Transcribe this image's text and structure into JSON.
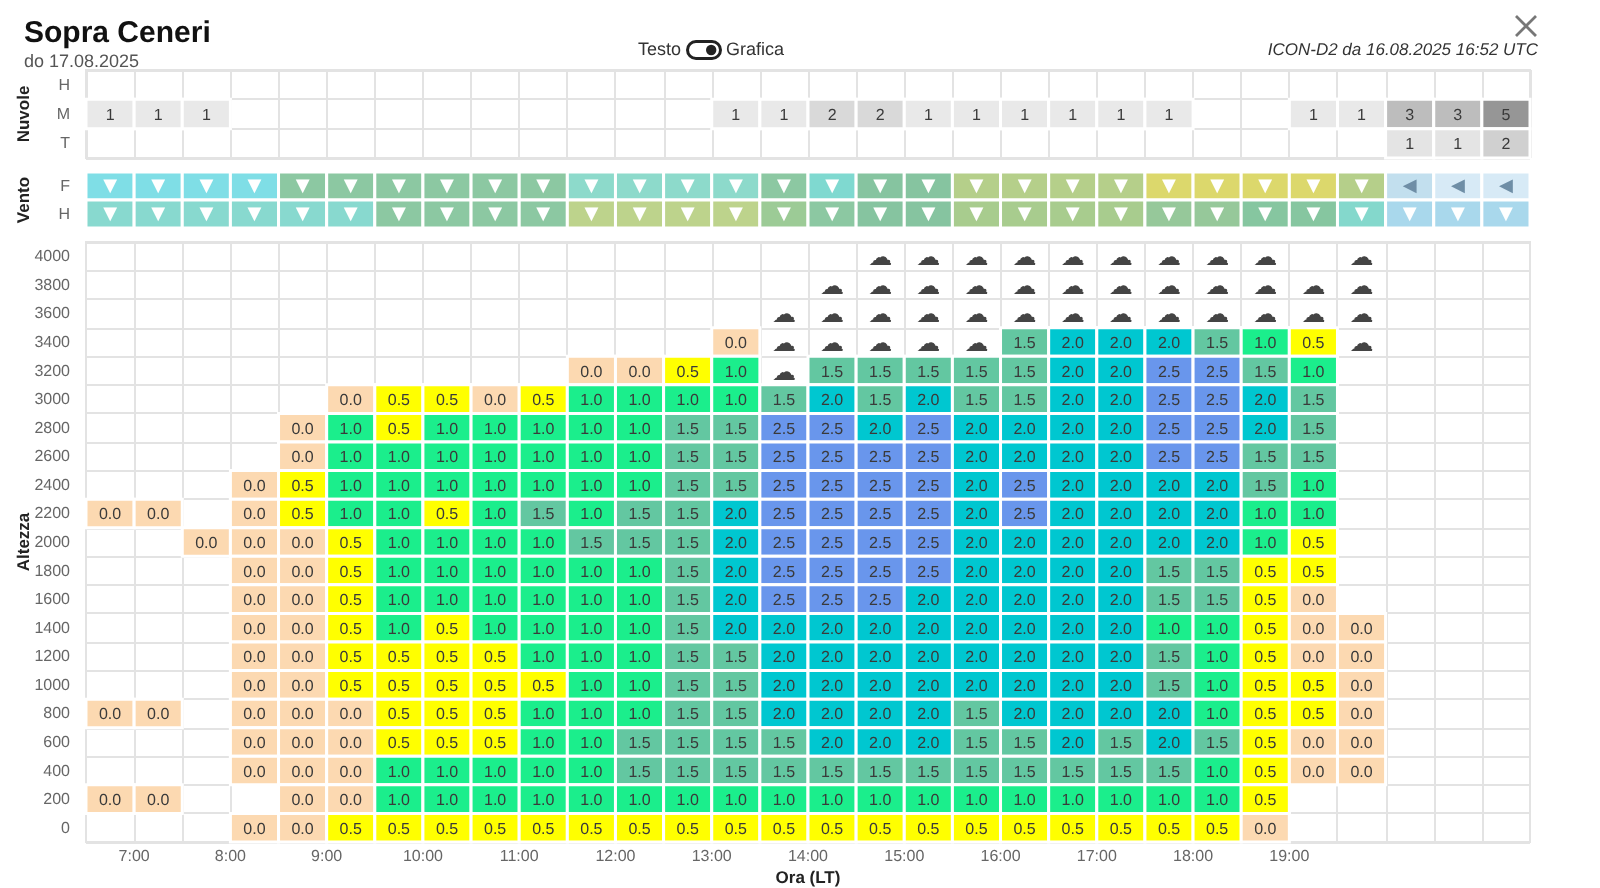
{
  "chart_data": [
    {
      "type": "heatmap",
      "title": "Sopra Ceneri",
      "subtitle": "do 17.08.2025",
      "annotations": [
        "Testo",
        "Grafica",
        "ICON-D2 da 16.08.2025 16:52 UTC"
      ],
      "ylabel": "Nuvole",
      "tick_labels": "y",
      "grid": true,
      "data_labels": true,
      "categories": [
        null,
        null,
        null,
        null,
        null,
        null,
        null,
        null,
        null,
        null,
        null,
        null,
        null,
        null,
        null,
        null,
        null,
        null,
        null,
        null,
        null,
        null,
        null,
        null,
        null,
        null,
        null,
        null,
        null,
        null
      ],
      "y_categories": [
        "H",
        "M",
        "T"
      ],
      "cells": [
        [
          null,
          null,
          null,
          null,
          null,
          null,
          null,
          null,
          null,
          null,
          null,
          null,
          null,
          null,
          null,
          null,
          null,
          null,
          null,
          null,
          null,
          null,
          null,
          null,
          null,
          null,
          null,
          null,
          null,
          null
        ],
        [
          1,
          1,
          1,
          null,
          null,
          null,
          null,
          null,
          null,
          null,
          null,
          null,
          null,
          1,
          1,
          2,
          2,
          1,
          1,
          1,
          1,
          1,
          1,
          null,
          null,
          1,
          1,
          3,
          3,
          5
        ],
        [
          null,
          null,
          null,
          null,
          null,
          null,
          null,
          null,
          null,
          null,
          null,
          null,
          null,
          null,
          null,
          null,
          null,
          null,
          null,
          null,
          null,
          null,
          null,
          null,
          null,
          null,
          null,
          1,
          1,
          2
        ]
      ],
      "colors": [
        [
          null,
          null,
          null,
          null,
          null,
          null,
          null,
          null,
          null,
          null,
          null,
          null,
          null,
          null,
          null,
          null,
          null,
          null,
          null,
          null,
          null,
          null,
          null,
          null,
          null,
          null,
          null,
          null,
          null,
          null
        ],
        [
          "#e9e9e9",
          "#e9e9e9",
          "#e9e9e9",
          null,
          null,
          null,
          null,
          null,
          null,
          null,
          null,
          null,
          null,
          "#e9e9e9",
          "#e9e9e9",
          "#d9d9d9",
          "#d9d9d9",
          "#e9e9e9",
          "#e9e9e9",
          "#e9e9e9",
          "#e9e9e9",
          "#e9e9e9",
          "#e9e9e9",
          null,
          null,
          "#e9e9e9",
          "#e9e9e9",
          "#bdbdbd",
          "#bdbdbd",
          "#969696"
        ],
        [
          null,
          null,
          null,
          null,
          null,
          null,
          null,
          null,
          null,
          null,
          null,
          null,
          null,
          null,
          null,
          null,
          null,
          null,
          null,
          null,
          null,
          null,
          null,
          null,
          null,
          null,
          null,
          "#e4e4e4",
          "#e4e4e4",
          "#d0d0d0"
        ]
      ]
    },
    {
      "type": "other",
      "ylabel": "Vento",
      "categories": [
        null,
        null,
        null,
        null,
        null,
        null,
        null,
        null,
        null,
        null,
        null,
        null,
        null,
        null,
        null,
        null,
        null,
        null,
        null,
        null,
        null,
        null,
        null,
        null,
        null,
        null,
        null,
        null,
        null,
        null
      ],
      "y_categories": [
        "F",
        "H"
      ],
      "cell_labels": [
        [
          "▼",
          "▼",
          "▼",
          "▼",
          "▼",
          "▼",
          "▼",
          "▼",
          "▼",
          "▼",
          "▼",
          "▼",
          "▼",
          "▼",
          "▼",
          "▼",
          "▼",
          "▼",
          "▼",
          "▼",
          "▼",
          "▼",
          "▼",
          "▼",
          "▼",
          "▼",
          "▼",
          "◀",
          "◀",
          "◀"
        ],
        [
          "▼",
          "▼",
          "▼",
          "▼",
          "▼",
          "▼",
          "▼",
          "▼",
          "▼",
          "▼",
          "▼",
          "▼",
          "▼",
          "▼",
          "▼",
          "▼",
          "▼",
          "▼",
          "▼",
          "▼",
          "▼",
          "▼",
          "▼",
          "▼",
          "▼",
          "▼",
          "▼",
          "▼",
          "▼",
          "▼"
        ]
      ],
      "colors": [
        [
          "#7fdee6",
          "#7fdee6",
          "#7fdee6",
          "#7fdee6",
          "#8cc8a2",
          "#8cc8a2",
          "#8cc8a2",
          "#8cc8a2",
          "#8cc8a2",
          "#8cc8a2",
          "#8ddacb",
          "#8ddacb",
          "#8ddacb",
          "#8ddacb",
          "#8cc8a2",
          "#7fd9d0",
          "#86c4a0",
          "#86c4a0",
          "#b5cf8a",
          "#b5cf8a",
          "#b5cf8a",
          "#b5cf8a",
          "#dcd86c",
          "#dcd86c",
          "#dcd86c",
          "#dcd86c",
          "#b5cf8a",
          "#c2dfee",
          "#d7eaf6",
          "#d7eaf6"
        ],
        [
          "#88d9cf",
          "#88d9cf",
          "#88d9cf",
          "#88d9cf",
          "#88d9cf",
          "#88d9cf",
          "#8cc8a2",
          "#8cc8a2",
          "#8cc8a2",
          "#8cc8a2",
          "#bdd38c",
          "#bdd38c",
          "#bdd38c",
          "#bdd38c",
          "#9ccb96",
          "#8cc8a2",
          "#86c4a0",
          "#86c4a0",
          "#a8cc8e",
          "#a8cc8e",
          "#a8cc8e",
          "#a8cc8e",
          "#96c89a",
          "#96c89a",
          "#86c6a0",
          "#86c6a0",
          "#84d8cc",
          "#a9d8ec",
          "#a9d8ec",
          "#a9d8ec"
        ]
      ]
    },
    {
      "type": "heatmap",
      "xlabel": "Ora (LT)",
      "ylabel": "Altezza",
      "grid": true,
      "x": [
        6.75,
        7.25,
        7.75,
        8.25,
        8.75,
        9.25,
        9.75,
        10.25,
        10.75,
        11.25,
        11.75,
        12.25,
        12.75,
        13.25,
        13.75,
        14.25,
        14.75,
        15.25,
        15.75,
        16.25,
        16.75,
        17.25,
        17.75,
        18.25,
        18.75,
        19.25,
        19.75
      ],
      "xlim": [
        6.5,
        21.5
      ],
      "xticks": [
        {
          "value": 7,
          "label": "7:00"
        },
        {
          "value": 7.5,
          "label": null
        },
        {
          "value": 8,
          "label": "8:00"
        },
        {
          "value": 8.5,
          "label": null
        },
        {
          "value": 9,
          "label": "9:00"
        },
        {
          "value": 9.5,
          "label": null
        },
        {
          "value": 10,
          "label": "10:00"
        },
        {
          "value": 10.5,
          "label": null
        },
        {
          "value": 11,
          "label": "11:00"
        },
        {
          "value": 11.5,
          "label": null
        },
        {
          "value": 12,
          "label": "12:00"
        },
        {
          "value": 12.5,
          "label": null
        },
        {
          "value": 13,
          "label": "13:00"
        },
        {
          "value": 13.5,
          "label": null
        },
        {
          "value": 14,
          "label": "14:00"
        },
        {
          "value": 14.5,
          "label": null
        },
        {
          "value": 15,
          "label": "15:00"
        },
        {
          "value": 15.5,
          "label": null
        },
        {
          "value": 16,
          "label": "16:00"
        },
        {
          "value": 16.5,
          "label": null
        },
        {
          "value": 17,
          "label": "17:00"
        },
        {
          "value": 17.5,
          "label": null
        },
        {
          "value": 18,
          "label": "18:00"
        },
        {
          "value": 18.5,
          "label": null
        },
        {
          "value": 19,
          "label": "19:00"
        },
        {
          "value": 19.5,
          "label": null
        },
        {
          "value": 20,
          "label": null
        },
        {
          "value": 20.5,
          "label": null
        },
        {
          "value": 21,
          "label": null
        }
      ],
      "y_categories": [
        "4000",
        "3800",
        "3600",
        "3400",
        "3200",
        "3000",
        "2800",
        "2600",
        "2400",
        "2200",
        "2000",
        "1800",
        "1600",
        "1400",
        "1200",
        "1000",
        "800",
        "600",
        "400",
        "200",
        "0"
      ],
      "cells": [
        [
          null,
          null,
          null,
          null,
          null,
          null,
          null,
          null,
          null,
          null,
          null,
          null,
          null,
          null,
          null,
          null,
          null,
          null,
          null,
          null,
          null,
          null,
          null,
          null,
          null,
          null,
          null
        ],
        [
          null,
          null,
          null,
          null,
          null,
          null,
          null,
          null,
          null,
          null,
          null,
          null,
          null,
          null,
          null,
          null,
          null,
          null,
          null,
          null,
          null,
          null,
          null,
          null,
          null,
          null,
          null
        ],
        [
          null,
          null,
          null,
          null,
          null,
          null,
          null,
          null,
          null,
          null,
          null,
          null,
          null,
          null,
          null,
          null,
          null,
          null,
          null,
          null,
          null,
          null,
          null,
          null,
          null,
          null,
          null
        ],
        [
          null,
          null,
          null,
          null,
          null,
          null,
          null,
          null,
          null,
          null,
          null,
          null,
          null,
          0,
          null,
          null,
          null,
          null,
          null,
          1.5,
          2,
          2,
          2,
          1.5,
          1,
          0.5,
          null
        ],
        [
          null,
          null,
          null,
          null,
          null,
          null,
          null,
          null,
          null,
          null,
          0,
          0,
          0.5,
          1,
          null,
          1.5,
          1.5,
          1.5,
          1.5,
          1.5,
          2,
          2,
          2.5,
          2.5,
          1.5,
          1,
          null
        ],
        [
          null,
          null,
          null,
          null,
          null,
          0,
          0.5,
          0.5,
          0,
          0.5,
          1,
          1,
          1,
          1,
          1.5,
          2,
          1.5,
          2,
          1.5,
          1.5,
          2,
          2,
          2.5,
          2.5,
          2,
          1.5,
          null
        ],
        [
          null,
          null,
          null,
          null,
          0,
          1,
          0.5,
          1,
          1,
          1,
          1,
          1,
          1.5,
          1.5,
          2.5,
          2.5,
          2,
          2.5,
          2,
          2,
          2,
          2,
          2.5,
          2.5,
          2,
          1.5,
          null
        ],
        [
          null,
          null,
          null,
          null,
          0,
          1,
          1,
          1,
          1,
          1,
          1,
          1,
          1.5,
          1.5,
          2.5,
          2.5,
          2.5,
          2.5,
          2,
          2,
          2,
          2,
          2.5,
          2.5,
          1.5,
          1.5,
          null
        ],
        [
          null,
          null,
          null,
          0,
          0.5,
          1,
          1,
          1,
          1,
          1,
          1,
          1,
          1.5,
          1.5,
          2.5,
          2.5,
          2.5,
          2.5,
          2,
          2.5,
          2,
          2,
          2,
          2,
          1.5,
          1,
          null
        ],
        [
          0,
          0,
          null,
          0,
          0.5,
          1,
          1,
          0.5,
          1,
          1.5,
          1,
          1.5,
          1.5,
          2,
          2.5,
          2.5,
          2.5,
          2.5,
          2,
          2.5,
          2,
          2,
          2,
          2,
          1,
          1,
          null
        ],
        [
          null,
          null,
          0,
          0,
          0,
          0.5,
          1,
          1,
          1,
          1,
          1.5,
          1.5,
          1.5,
          2,
          2.5,
          2.5,
          2.5,
          2.5,
          2,
          2,
          2,
          2,
          2,
          2,
          1,
          0.5,
          null
        ],
        [
          null,
          null,
          null,
          0,
          0,
          0.5,
          1,
          1,
          1,
          1,
          1,
          1,
          1.5,
          2,
          2.5,
          2.5,
          2.5,
          2.5,
          2,
          2,
          2,
          2,
          1.5,
          1.5,
          0.5,
          0.5,
          null
        ],
        [
          null,
          null,
          null,
          0,
          0,
          0.5,
          1,
          1,
          1,
          1,
          1,
          1,
          1.5,
          2,
          2.5,
          2.5,
          2.5,
          2,
          2,
          2,
          2,
          2,
          1.5,
          1.5,
          0.5,
          0,
          null
        ],
        [
          null,
          null,
          null,
          0,
          0,
          0.5,
          1,
          0.5,
          1,
          1,
          1,
          1,
          1.5,
          2,
          2,
          2,
          2,
          2,
          2,
          2,
          2,
          2,
          1,
          1,
          0.5,
          0,
          0
        ],
        [
          null,
          null,
          null,
          0,
          0,
          0.5,
          0.5,
          0.5,
          0.5,
          1,
          1,
          1,
          1.5,
          1.5,
          2,
          2,
          2,
          2,
          2,
          2,
          2,
          2,
          1.5,
          1,
          0.5,
          0,
          0
        ],
        [
          null,
          null,
          null,
          0,
          0,
          0.5,
          0.5,
          0.5,
          0.5,
          0.5,
          1,
          1,
          1.5,
          1.5,
          2,
          2,
          2,
          2,
          2,
          2,
          2,
          2,
          1.5,
          1,
          0.5,
          0.5,
          0
        ],
        [
          0,
          0,
          null,
          0,
          0,
          0,
          0.5,
          0.5,
          0.5,
          1,
          1,
          1,
          1.5,
          1.5,
          2,
          2,
          2,
          2,
          1.5,
          2,
          2,
          2,
          2,
          1,
          0.5,
          0.5,
          0
        ],
        [
          null,
          null,
          null,
          0,
          0,
          0,
          0.5,
          0.5,
          0.5,
          1,
          1,
          1.5,
          1.5,
          1.5,
          1.5,
          2,
          2,
          2,
          1.5,
          1.5,
          2,
          1.5,
          2,
          1.5,
          0.5,
          0,
          0
        ],
        [
          null,
          null,
          null,
          0,
          0,
          0,
          1,
          1,
          1,
          1,
          1,
          1.5,
          1.5,
          1.5,
          1.5,
          1.5,
          1.5,
          1.5,
          1.5,
          1.5,
          1.5,
          1.5,
          1.5,
          1,
          0.5,
          0,
          0
        ],
        [
          0,
          0,
          null,
          null,
          0,
          0,
          1,
          1,
          1,
          1,
          1,
          1,
          1,
          1,
          1,
          1,
          1,
          1,
          1,
          1,
          1,
          1,
          1,
          1,
          0.5,
          null,
          null
        ],
        [
          null,
          null,
          null,
          0,
          0,
          0.5,
          0.5,
          0.5,
          0.5,
          0.5,
          0.5,
          0.5,
          0.5,
          0.5,
          0.5,
          0.5,
          0.5,
          0.5,
          0.5,
          0.5,
          0.5,
          0.5,
          0.5,
          0.5,
          0,
          null,
          null
        ]
      ],
      "cell_labels": [
        [
          null,
          null,
          null,
          null,
          null,
          null,
          null,
          null,
          null,
          null,
          null,
          null,
          null,
          null,
          null,
          null,
          "☁",
          "☁",
          "☁",
          "☁",
          "☁",
          "☁",
          "☁",
          "☁",
          "☁",
          null,
          "☁"
        ],
        [
          null,
          null,
          null,
          null,
          null,
          null,
          null,
          null,
          null,
          null,
          null,
          null,
          null,
          null,
          null,
          "☁",
          "☁",
          "☁",
          "☁",
          "☁",
          "☁",
          "☁",
          "☁",
          "☁",
          "☁",
          "☁",
          "☁"
        ],
        [
          null,
          null,
          null,
          null,
          null,
          null,
          null,
          null,
          null,
          null,
          null,
          null,
          null,
          null,
          "☁",
          "☁",
          "☁",
          "☁",
          "☁",
          "☁",
          "☁",
          "☁",
          "☁",
          "☁",
          "☁",
          "☁",
          "☁"
        ],
        [
          null,
          null,
          null,
          null,
          null,
          null,
          null,
          null,
          null,
          null,
          null,
          null,
          null,
          "0.0",
          "☁",
          "☁",
          "☁",
          "☁",
          "☁",
          "1.5",
          "2.0",
          "2.0",
          "2.0",
          "1.5",
          "1.0",
          "0.5",
          "☁"
        ],
        [
          null,
          null,
          null,
          null,
          null,
          null,
          null,
          null,
          null,
          null,
          "0.0",
          "0.0",
          "0.5",
          "1.0",
          "☁",
          "1.5",
          "1.5",
          "1.5",
          "1.5",
          "1.5",
          "2.0",
          "2.0",
          "2.5",
          "2.5",
          "1.5",
          "1.0",
          null
        ],
        [
          null,
          null,
          null,
          null,
          null,
          "0.0",
          "0.5",
          "0.5",
          "0.0",
          "0.5",
          "1.0",
          "1.0",
          "1.0",
          "1.0",
          "1.5",
          "2.0",
          "1.5",
          "2.0",
          "1.5",
          "1.5",
          "2.0",
          "2.0",
          "2.5",
          "2.5",
          "2.0",
          "1.5",
          null
        ],
        [
          null,
          null,
          null,
          null,
          "0.0",
          "1.0",
          "0.5",
          "1.0",
          "1.0",
          "1.0",
          "1.0",
          "1.0",
          "1.5",
          "1.5",
          "2.5",
          "2.5",
          "2.0",
          "2.5",
          "2.0",
          "2.0",
          "2.0",
          "2.0",
          "2.5",
          "2.5",
          "2.0",
          "1.5",
          null
        ],
        [
          null,
          null,
          null,
          null,
          "0.0",
          "1.0",
          "1.0",
          "1.0",
          "1.0",
          "1.0",
          "1.0",
          "1.0",
          "1.5",
          "1.5",
          "2.5",
          "2.5",
          "2.5",
          "2.5",
          "2.0",
          "2.0",
          "2.0",
          "2.0",
          "2.5",
          "2.5",
          "1.5",
          "1.5",
          null
        ],
        [
          null,
          null,
          null,
          "0.0",
          "0.5",
          "1.0",
          "1.0",
          "1.0",
          "1.0",
          "1.0",
          "1.0",
          "1.0",
          "1.5",
          "1.5",
          "2.5",
          "2.5",
          "2.5",
          "2.5",
          "2.0",
          "2.5",
          "2.0",
          "2.0",
          "2.0",
          "2.0",
          "1.5",
          "1.0",
          null
        ],
        [
          "0.0",
          "0.0",
          null,
          "0.0",
          "0.5",
          "1.0",
          "1.0",
          "0.5",
          "1.0",
          "1.5",
          "1.0",
          "1.5",
          "1.5",
          "2.0",
          "2.5",
          "2.5",
          "2.5",
          "2.5",
          "2.0",
          "2.5",
          "2.0",
          "2.0",
          "2.0",
          "2.0",
          "1.0",
          "1.0",
          null
        ],
        [
          null,
          null,
          "0.0",
          "0.0",
          "0.0",
          "0.5",
          "1.0",
          "1.0",
          "1.0",
          "1.0",
          "1.5",
          "1.5",
          "1.5",
          "2.0",
          "2.5",
          "2.5",
          "2.5",
          "2.5",
          "2.0",
          "2.0",
          "2.0",
          "2.0",
          "2.0",
          "2.0",
          "1.0",
          "0.5",
          null
        ],
        [
          null,
          null,
          null,
          "0.0",
          "0.0",
          "0.5",
          "1.0",
          "1.0",
          "1.0",
          "1.0",
          "1.0",
          "1.0",
          "1.5",
          "2.0",
          "2.5",
          "2.5",
          "2.5",
          "2.5",
          "2.0",
          "2.0",
          "2.0",
          "2.0",
          "1.5",
          "1.5",
          "0.5",
          "0.5",
          null
        ],
        [
          null,
          null,
          null,
          "0.0",
          "0.0",
          "0.5",
          "1.0",
          "1.0",
          "1.0",
          "1.0",
          "1.0",
          "1.0",
          "1.5",
          "2.0",
          "2.5",
          "2.5",
          "2.5",
          "2.0",
          "2.0",
          "2.0",
          "2.0",
          "2.0",
          "1.5",
          "1.5",
          "0.5",
          "0.0",
          null
        ],
        [
          null,
          null,
          null,
          "0.0",
          "0.0",
          "0.5",
          "1.0",
          "0.5",
          "1.0",
          "1.0",
          "1.0",
          "1.0",
          "1.5",
          "2.0",
          "2.0",
          "2.0",
          "2.0",
          "2.0",
          "2.0",
          "2.0",
          "2.0",
          "2.0",
          "1.0",
          "1.0",
          "0.5",
          "0.0",
          "0.0"
        ],
        [
          null,
          null,
          null,
          "0.0",
          "0.0",
          "0.5",
          "0.5",
          "0.5",
          "0.5",
          "1.0",
          "1.0",
          "1.0",
          "1.5",
          "1.5",
          "2.0",
          "2.0",
          "2.0",
          "2.0",
          "2.0",
          "2.0",
          "2.0",
          "2.0",
          "1.5",
          "1.0",
          "0.5",
          "0.0",
          "0.0"
        ],
        [
          null,
          null,
          null,
          "0.0",
          "0.0",
          "0.5",
          "0.5",
          "0.5",
          "0.5",
          "0.5",
          "1.0",
          "1.0",
          "1.5",
          "1.5",
          "2.0",
          "2.0",
          "2.0",
          "2.0",
          "2.0",
          "2.0",
          "2.0",
          "2.0",
          "1.5",
          "1.0",
          "0.5",
          "0.5",
          "0.0"
        ],
        [
          "0.0",
          "0.0",
          null,
          "0.0",
          "0.0",
          "0.0",
          "0.5",
          "0.5",
          "0.5",
          "1.0",
          "1.0",
          "1.0",
          "1.5",
          "1.5",
          "2.0",
          "2.0",
          "2.0",
          "2.0",
          "1.5",
          "2.0",
          "2.0",
          "2.0",
          "2.0",
          "1.0",
          "0.5",
          "0.5",
          "0.0"
        ],
        [
          null,
          null,
          null,
          "0.0",
          "0.0",
          "0.0",
          "0.5",
          "0.5",
          "0.5",
          "1.0",
          "1.0",
          "1.5",
          "1.5",
          "1.5",
          "1.5",
          "2.0",
          "2.0",
          "2.0",
          "1.5",
          "1.5",
          "2.0",
          "1.5",
          "2.0",
          "1.5",
          "0.5",
          "0.0",
          "0.0"
        ],
        [
          null,
          null,
          null,
          "0.0",
          "0.0",
          "0.0",
          "1.0",
          "1.0",
          "1.0",
          "1.0",
          "1.0",
          "1.5",
          "1.5",
          "1.5",
          "1.5",
          "1.5",
          "1.5",
          "1.5",
          "1.5",
          "1.5",
          "1.5",
          "1.5",
          "1.5",
          "1.0",
          "0.5",
          "0.0",
          "0.0"
        ],
        [
          "0.0",
          "0.0",
          null,
          null,
          "0.0",
          "0.0",
          "1.0",
          "1.0",
          "1.0",
          "1.0",
          "1.0",
          "1.0",
          "1.0",
          "1.0",
          "1.0",
          "1.0",
          "1.0",
          "1.0",
          "1.0",
          "1.0",
          "1.0",
          "1.0",
          "1.0",
          "1.0",
          "0.5",
          null,
          null
        ],
        [
          null,
          null,
          null,
          "0.0",
          "0.0",
          "0.5",
          "0.5",
          "0.5",
          "0.5",
          "0.5",
          "0.5",
          "0.5",
          "0.5",
          "0.5",
          "0.5",
          "0.5",
          "0.5",
          "0.5",
          "0.5",
          "0.5",
          "0.5",
          "0.5",
          "0.5",
          "0.5",
          "0.0",
          null,
          null
        ]
      ],
      "colors": [
        [
          null,
          null,
          null,
          null,
          null,
          null,
          null,
          null,
          null,
          null,
          null,
          null,
          null,
          null,
          null,
          null,
          null,
          null,
          null,
          null,
          null,
          null,
          null,
          null,
          null,
          null,
          null
        ],
        [
          null,
          null,
          null,
          null,
          null,
          null,
          null,
          null,
          null,
          null,
          null,
          null,
          null,
          null,
          null,
          null,
          null,
          null,
          null,
          null,
          null,
          null,
          null,
          null,
          null,
          null,
          null
        ],
        [
          null,
          null,
          null,
          null,
          null,
          null,
          null,
          null,
          null,
          null,
          null,
          null,
          null,
          null,
          null,
          null,
          null,
          null,
          null,
          null,
          null,
          null,
          null,
          null,
          null,
          null,
          null
        ],
        [
          null,
          null,
          null,
          null,
          null,
          null,
          null,
          null,
          null,
          null,
          null,
          null,
          null,
          "#fcd9b1",
          null,
          null,
          null,
          null,
          null,
          "#63c7a1",
          "#00c7d0",
          "#00c7d0",
          "#00c7d0",
          "#63c7a1",
          "#1bee8c",
          "#ffff00",
          null
        ],
        [
          null,
          null,
          null,
          null,
          null,
          null,
          null,
          null,
          null,
          null,
          "#fcd9b1",
          "#fcd9b1",
          "#ffff00",
          "#1bee8c",
          null,
          "#63c7a1",
          "#63c7a1",
          "#63c7a1",
          "#63c7a1",
          "#63c7a1",
          "#00c7d0",
          "#00c7d0",
          "#6996ec",
          "#6996ec",
          "#63c7a1",
          "#1bee8c",
          null
        ],
        [
          null,
          null,
          null,
          null,
          null,
          "#fcd9b1",
          "#ffff00",
          "#ffff00",
          "#fcd9b1",
          "#ffff00",
          "#1bee8c",
          "#1bee8c",
          "#1bee8c",
          "#1bee8c",
          "#63c7a1",
          "#00c7d0",
          "#63c7a1",
          "#00c7d0",
          "#63c7a1",
          "#63c7a1",
          "#00c7d0",
          "#00c7d0",
          "#6996ec",
          "#6996ec",
          "#00c7d0",
          "#63c7a1",
          null
        ],
        [
          null,
          null,
          null,
          null,
          "#fcd9b1",
          "#1bee8c",
          "#ffff00",
          "#1bee8c",
          "#1bee8c",
          "#1bee8c",
          "#1bee8c",
          "#1bee8c",
          "#63c7a1",
          "#63c7a1",
          "#6996ec",
          "#6996ec",
          "#00c7d0",
          "#6996ec",
          "#00c7d0",
          "#00c7d0",
          "#00c7d0",
          "#00c7d0",
          "#6996ec",
          "#6996ec",
          "#00c7d0",
          "#63c7a1",
          null
        ],
        [
          null,
          null,
          null,
          null,
          "#fcd9b1",
          "#1bee8c",
          "#1bee8c",
          "#1bee8c",
          "#1bee8c",
          "#1bee8c",
          "#1bee8c",
          "#1bee8c",
          "#63c7a1",
          "#63c7a1",
          "#6996ec",
          "#6996ec",
          "#6996ec",
          "#6996ec",
          "#00c7d0",
          "#00c7d0",
          "#00c7d0",
          "#00c7d0",
          "#6996ec",
          "#6996ec",
          "#63c7a1",
          "#63c7a1",
          null
        ],
        [
          null,
          null,
          null,
          "#fcd9b1",
          "#ffff00",
          "#1bee8c",
          "#1bee8c",
          "#1bee8c",
          "#1bee8c",
          "#1bee8c",
          "#1bee8c",
          "#1bee8c",
          "#63c7a1",
          "#63c7a1",
          "#6996ec",
          "#6996ec",
          "#6996ec",
          "#6996ec",
          "#00c7d0",
          "#6996ec",
          "#00c7d0",
          "#00c7d0",
          "#00c7d0",
          "#00c7d0",
          "#63c7a1",
          "#1bee8c",
          null
        ],
        [
          "#fcd9b1",
          "#fcd9b1",
          null,
          "#fcd9b1",
          "#ffff00",
          "#1bee8c",
          "#1bee8c",
          "#ffff00",
          "#1bee8c",
          "#63c7a1",
          "#1bee8c",
          "#63c7a1",
          "#63c7a1",
          "#00c7d0",
          "#6996ec",
          "#6996ec",
          "#6996ec",
          "#6996ec",
          "#00c7d0",
          "#6996ec",
          "#00c7d0",
          "#00c7d0",
          "#00c7d0",
          "#00c7d0",
          "#1bee8c",
          "#1bee8c",
          null
        ],
        [
          null,
          null,
          "#fcd9b1",
          "#fcd9b1",
          "#fcd9b1",
          "#ffff00",
          "#1bee8c",
          "#1bee8c",
          "#1bee8c",
          "#1bee8c",
          "#63c7a1",
          "#63c7a1",
          "#63c7a1",
          "#00c7d0",
          "#6996ec",
          "#6996ec",
          "#6996ec",
          "#6996ec",
          "#00c7d0",
          "#00c7d0",
          "#00c7d0",
          "#00c7d0",
          "#00c7d0",
          "#00c7d0",
          "#1bee8c",
          "#ffff00",
          null
        ],
        [
          null,
          null,
          null,
          "#fcd9b1",
          "#fcd9b1",
          "#ffff00",
          "#1bee8c",
          "#1bee8c",
          "#1bee8c",
          "#1bee8c",
          "#1bee8c",
          "#1bee8c",
          "#63c7a1",
          "#00c7d0",
          "#6996ec",
          "#6996ec",
          "#6996ec",
          "#6996ec",
          "#00c7d0",
          "#00c7d0",
          "#00c7d0",
          "#00c7d0",
          "#63c7a1",
          "#63c7a1",
          "#ffff00",
          "#ffff00",
          null
        ],
        [
          null,
          null,
          null,
          "#fcd9b1",
          "#fcd9b1",
          "#ffff00",
          "#1bee8c",
          "#1bee8c",
          "#1bee8c",
          "#1bee8c",
          "#1bee8c",
          "#1bee8c",
          "#63c7a1",
          "#00c7d0",
          "#6996ec",
          "#6996ec",
          "#6996ec",
          "#00c7d0",
          "#00c7d0",
          "#00c7d0",
          "#00c7d0",
          "#00c7d0",
          "#63c7a1",
          "#63c7a1",
          "#ffff00",
          "#fcd9b1",
          null
        ],
        [
          null,
          null,
          null,
          "#fcd9b1",
          "#fcd9b1",
          "#ffff00",
          "#1bee8c",
          "#ffff00",
          "#1bee8c",
          "#1bee8c",
          "#1bee8c",
          "#1bee8c",
          "#63c7a1",
          "#00c7d0",
          "#00c7d0",
          "#00c7d0",
          "#00c7d0",
          "#00c7d0",
          "#00c7d0",
          "#00c7d0",
          "#00c7d0",
          "#00c7d0",
          "#1bee8c",
          "#1bee8c",
          "#ffff00",
          "#fcd9b1",
          "#fcd9b1"
        ],
        [
          null,
          null,
          null,
          "#fcd9b1",
          "#fcd9b1",
          "#ffff00",
          "#ffff00",
          "#ffff00",
          "#ffff00",
          "#1bee8c",
          "#1bee8c",
          "#1bee8c",
          "#63c7a1",
          "#63c7a1",
          "#00c7d0",
          "#00c7d0",
          "#00c7d0",
          "#00c7d0",
          "#00c7d0",
          "#00c7d0",
          "#00c7d0",
          "#00c7d0",
          "#63c7a1",
          "#1bee8c",
          "#ffff00",
          "#fcd9b1",
          "#fcd9b1"
        ],
        [
          null,
          null,
          null,
          "#fcd9b1",
          "#fcd9b1",
          "#ffff00",
          "#ffff00",
          "#ffff00",
          "#ffff00",
          "#ffff00",
          "#1bee8c",
          "#1bee8c",
          "#63c7a1",
          "#63c7a1",
          "#00c7d0",
          "#00c7d0",
          "#00c7d0",
          "#00c7d0",
          "#00c7d0",
          "#00c7d0",
          "#00c7d0",
          "#00c7d0",
          "#63c7a1",
          "#1bee8c",
          "#ffff00",
          "#ffff00",
          "#fcd9b1"
        ],
        [
          "#fcd9b1",
          "#fcd9b1",
          null,
          "#fcd9b1",
          "#fcd9b1",
          "#fcd9b1",
          "#ffff00",
          "#ffff00",
          "#ffff00",
          "#1bee8c",
          "#1bee8c",
          "#1bee8c",
          "#63c7a1",
          "#63c7a1",
          "#00c7d0",
          "#00c7d0",
          "#00c7d0",
          "#00c7d0",
          "#63c7a1",
          "#00c7d0",
          "#00c7d0",
          "#00c7d0",
          "#00c7d0",
          "#1bee8c",
          "#ffff00",
          "#ffff00",
          "#fcd9b1"
        ],
        [
          null,
          null,
          null,
          "#fcd9b1",
          "#fcd9b1",
          "#fcd9b1",
          "#ffff00",
          "#ffff00",
          "#ffff00",
          "#1bee8c",
          "#1bee8c",
          "#63c7a1",
          "#63c7a1",
          "#63c7a1",
          "#63c7a1",
          "#00c7d0",
          "#00c7d0",
          "#00c7d0",
          "#63c7a1",
          "#63c7a1",
          "#00c7d0",
          "#63c7a1",
          "#00c7d0",
          "#63c7a1",
          "#ffff00",
          "#fcd9b1",
          "#fcd9b1"
        ],
        [
          null,
          null,
          null,
          "#fcd9b1",
          "#fcd9b1",
          "#fcd9b1",
          "#1bee8c",
          "#1bee8c",
          "#1bee8c",
          "#1bee8c",
          "#1bee8c",
          "#63c7a1",
          "#63c7a1",
          "#63c7a1",
          "#63c7a1",
          "#63c7a1",
          "#63c7a1",
          "#63c7a1",
          "#63c7a1",
          "#63c7a1",
          "#63c7a1",
          "#63c7a1",
          "#63c7a1",
          "#1bee8c",
          "#ffff00",
          "#fcd9b1",
          "#fcd9b1"
        ],
        [
          "#fcd9b1",
          "#fcd9b1",
          null,
          null,
          "#fcd9b1",
          "#fcd9b1",
          "#1bee8c",
          "#1bee8c",
          "#1bee8c",
          "#1bee8c",
          "#1bee8c",
          "#1bee8c",
          "#1bee8c",
          "#1bee8c",
          "#1bee8c",
          "#1bee8c",
          "#1bee8c",
          "#1bee8c",
          "#1bee8c",
          "#1bee8c",
          "#1bee8c",
          "#1bee8c",
          "#1bee8c",
          "#1bee8c",
          "#ffff00",
          null,
          null
        ],
        [
          null,
          null,
          null,
          "#fcd9b1",
          "#fcd9b1",
          "#ffff00",
          "#ffff00",
          "#ffff00",
          "#ffff00",
          "#ffff00",
          "#ffff00",
          "#ffff00",
          "#ffff00",
          "#ffff00",
          "#ffff00",
          "#ffff00",
          "#ffff00",
          "#ffff00",
          "#ffff00",
          "#ffff00",
          "#ffff00",
          "#ffff00",
          "#ffff00",
          "#ffff00",
          "#fcd9b1",
          null,
          null
        ]
      ]
    }
  ]
}
